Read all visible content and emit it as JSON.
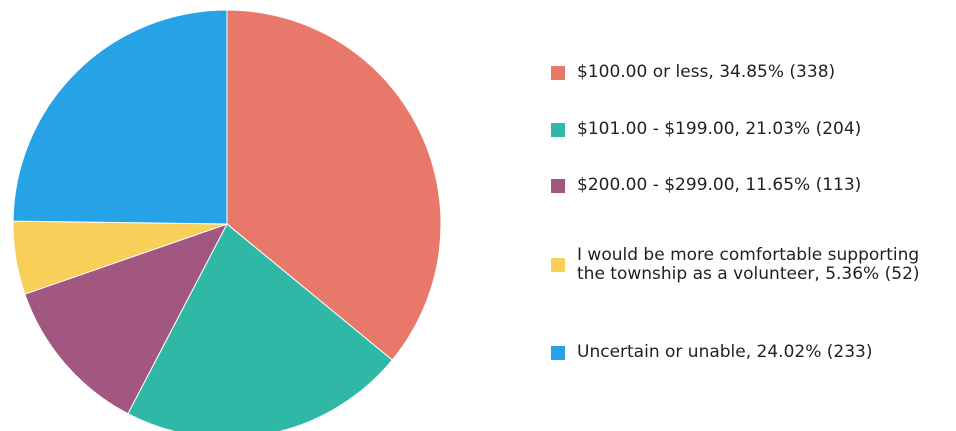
{
  "chart_data": {
    "type": "pie",
    "slices": [
      {
        "label": "$100.00 or less, 34.85% (338)",
        "category": "$100.00 or less",
        "percent": 34.85,
        "count": 338,
        "color": "#e8786a"
      },
      {
        "label": "$101.00 - $199.00, 21.03% (204)",
        "category": "$101.00 - $199.00",
        "percent": 21.03,
        "count": 204,
        "color": "#2fb8a6"
      },
      {
        "label": "$200.00 - $299.00, 11.65% (113)",
        "category": "$200.00 - $299.00",
        "percent": 11.65,
        "count": 113,
        "color": "#a1577f"
      },
      {
        "label": "I would be more comfortable supporting\nthe township as a volunteer, 5.36% (52)",
        "category": "I would be more comfortable supporting the township as a volunteer",
        "percent": 5.36,
        "count": 52,
        "color": "#f7cf59"
      },
      {
        "label": "Uncertain or unable, 24.02% (233)",
        "category": "Uncertain or unable",
        "percent": 24.02,
        "count": 233,
        "color": "#26a3e6"
      }
    ],
    "legend_position": "right"
  }
}
